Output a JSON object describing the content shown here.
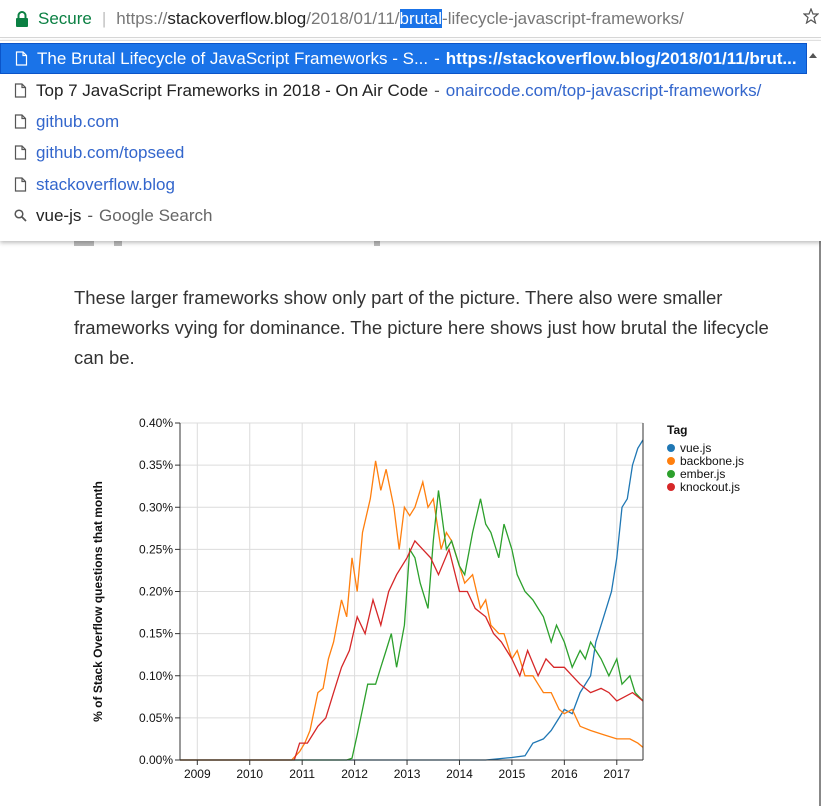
{
  "omnibox": {
    "secure_label": "Secure",
    "separator": "|",
    "url_scheme": "https://",
    "url_host": "stackoverflow.blog",
    "url_path_before": "/2018/01/11/",
    "url_selected": "brutal",
    "url_path_after": "-lifecycle-javascript-frameworks/"
  },
  "suggestions": [
    {
      "type": "page",
      "title": "The Brutal Lifecycle of JavaScript Frameworks - S...",
      "dash": "-",
      "url": "https://stackoverflow.blog/2018/01/11/brut...",
      "selected": true
    },
    {
      "type": "page",
      "title": "Top 7 JavaScript Frameworks in 2018 - On Air Code",
      "dash": "-",
      "url": "onaircode.com/top-javascript-frameworks/"
    },
    {
      "type": "page",
      "title": "",
      "dash": "",
      "url": "github.com"
    },
    {
      "type": "page",
      "title": "",
      "dash": "",
      "url": "github.com/topseed"
    },
    {
      "type": "page",
      "title": "",
      "dash": "",
      "url": "stackoverflow.blog"
    },
    {
      "type": "search",
      "title": "vue-js",
      "dash": "-",
      "url": "Google Search"
    }
  ],
  "article": {
    "paragraph": "These larger frameworks show only part of the picture. There also were smaller frameworks vying for dominance. The picture here shows just how brutal the lifecycle can be."
  },
  "chart_data": {
    "type": "line",
    "ylabel": "% of Stack Overflow questions that month",
    "xlabel": "",
    "x_ticks": [
      "2009",
      "2010",
      "2011",
      "2012",
      "2013",
      "2014",
      "2015",
      "2016",
      "2017"
    ],
    "y_ticks": [
      "0.00%",
      "0.05%",
      "0.10%",
      "0.15%",
      "0.20%",
      "0.25%",
      "0.30%",
      "0.35%",
      "0.40%"
    ],
    "ylim": [
      0,
      0.4
    ],
    "xlim": [
      2008.67,
      2017.5
    ],
    "grid": true,
    "legend_title": "Tag",
    "legend_position": "top-right",
    "series": [
      {
        "name": "vue.js",
        "color": "#1f77b4",
        "points": [
          [
            2008.67,
            0
          ],
          [
            2014.5,
            0
          ],
          [
            2015.0,
            0.003
          ],
          [
            2015.25,
            0.005
          ],
          [
            2015.4,
            0.02
          ],
          [
            2015.6,
            0.025
          ],
          [
            2015.75,
            0.035
          ],
          [
            2015.9,
            0.05
          ],
          [
            2016.0,
            0.06
          ],
          [
            2016.15,
            0.055
          ],
          [
            2016.3,
            0.08
          ],
          [
            2016.5,
            0.1
          ],
          [
            2016.6,
            0.14
          ],
          [
            2016.75,
            0.17
          ],
          [
            2016.9,
            0.2
          ],
          [
            2017.0,
            0.24
          ],
          [
            2017.1,
            0.3
          ],
          [
            2017.2,
            0.31
          ],
          [
            2017.3,
            0.35
          ],
          [
            2017.4,
            0.37
          ],
          [
            2017.5,
            0.38
          ]
        ]
      },
      {
        "name": "backbone.js",
        "color": "#ff7f0e",
        "points": [
          [
            2008.67,
            0
          ],
          [
            2010.8,
            0
          ],
          [
            2010.95,
            0.01
          ],
          [
            2011.05,
            0.02
          ],
          [
            2011.15,
            0.035
          ],
          [
            2011.3,
            0.08
          ],
          [
            2011.4,
            0.085
          ],
          [
            2011.5,
            0.12
          ],
          [
            2011.6,
            0.14
          ],
          [
            2011.75,
            0.19
          ],
          [
            2011.85,
            0.17
          ],
          [
            2011.95,
            0.24
          ],
          [
            2012.05,
            0.2
          ],
          [
            2012.15,
            0.27
          ],
          [
            2012.3,
            0.31
          ],
          [
            2012.4,
            0.355
          ],
          [
            2012.5,
            0.32
          ],
          [
            2012.6,
            0.345
          ],
          [
            2012.75,
            0.3
          ],
          [
            2012.85,
            0.25
          ],
          [
            2012.95,
            0.3
          ],
          [
            2013.05,
            0.29
          ],
          [
            2013.15,
            0.3
          ],
          [
            2013.3,
            0.33
          ],
          [
            2013.4,
            0.3
          ],
          [
            2013.5,
            0.31
          ],
          [
            2013.65,
            0.25
          ],
          [
            2013.75,
            0.27
          ],
          [
            2013.85,
            0.26
          ],
          [
            2014.0,
            0.23
          ],
          [
            2014.1,
            0.21
          ],
          [
            2014.25,
            0.22
          ],
          [
            2014.4,
            0.18
          ],
          [
            2014.5,
            0.19
          ],
          [
            2014.6,
            0.16
          ],
          [
            2014.75,
            0.15
          ],
          [
            2014.85,
            0.15
          ],
          [
            2015.0,
            0.12
          ],
          [
            2015.1,
            0.13
          ],
          [
            2015.25,
            0.1
          ],
          [
            2015.4,
            0.1
          ],
          [
            2015.5,
            0.09
          ],
          [
            2015.6,
            0.08
          ],
          [
            2015.75,
            0.08
          ],
          [
            2015.9,
            0.06
          ],
          [
            2016.0,
            0.055
          ],
          [
            2016.15,
            0.06
          ],
          [
            2016.3,
            0.04
          ],
          [
            2016.5,
            0.035
          ],
          [
            2016.75,
            0.03
          ],
          [
            2017.0,
            0.025
          ],
          [
            2017.25,
            0.025
          ],
          [
            2017.4,
            0.02
          ],
          [
            2017.5,
            0.015
          ]
        ]
      },
      {
        "name": "ember.js",
        "color": "#2ca02c",
        "points": [
          [
            2008.67,
            0
          ],
          [
            2011.85,
            0
          ],
          [
            2011.95,
            0.002
          ],
          [
            2012.05,
            0.03
          ],
          [
            2012.15,
            0.06
          ],
          [
            2012.25,
            0.09
          ],
          [
            2012.4,
            0.09
          ],
          [
            2012.5,
            0.11
          ],
          [
            2012.6,
            0.13
          ],
          [
            2012.7,
            0.15
          ],
          [
            2012.8,
            0.11
          ],
          [
            2012.95,
            0.16
          ],
          [
            2013.05,
            0.25
          ],
          [
            2013.15,
            0.24
          ],
          [
            2013.25,
            0.21
          ],
          [
            2013.4,
            0.18
          ],
          [
            2013.5,
            0.26
          ],
          [
            2013.6,
            0.32
          ],
          [
            2013.75,
            0.25
          ],
          [
            2013.85,
            0.26
          ],
          [
            2014.0,
            0.23
          ],
          [
            2014.1,
            0.22
          ],
          [
            2014.25,
            0.27
          ],
          [
            2014.4,
            0.31
          ],
          [
            2014.5,
            0.28
          ],
          [
            2014.6,
            0.27
          ],
          [
            2014.75,
            0.24
          ],
          [
            2014.85,
            0.28
          ],
          [
            2015.0,
            0.25
          ],
          [
            2015.1,
            0.22
          ],
          [
            2015.25,
            0.2
          ],
          [
            2015.4,
            0.19
          ],
          [
            2015.5,
            0.18
          ],
          [
            2015.6,
            0.17
          ],
          [
            2015.75,
            0.14
          ],
          [
            2015.85,
            0.16
          ],
          [
            2016.0,
            0.14
          ],
          [
            2016.15,
            0.11
          ],
          [
            2016.3,
            0.13
          ],
          [
            2016.4,
            0.12
          ],
          [
            2016.5,
            0.14
          ],
          [
            2016.6,
            0.13
          ],
          [
            2016.7,
            0.12
          ],
          [
            2016.85,
            0.1
          ],
          [
            2017.0,
            0.12
          ],
          [
            2017.1,
            0.09
          ],
          [
            2017.25,
            0.1
          ],
          [
            2017.35,
            0.08
          ],
          [
            2017.5,
            0.07
          ]
        ]
      },
      {
        "name": "knockout.js",
        "color": "#d62728",
        "points": [
          [
            2008.67,
            0
          ],
          [
            2010.85,
            0
          ],
          [
            2010.95,
            0.02
          ],
          [
            2011.1,
            0.02
          ],
          [
            2011.3,
            0.04
          ],
          [
            2011.45,
            0.05
          ],
          [
            2011.6,
            0.08
          ],
          [
            2011.75,
            0.11
          ],
          [
            2011.9,
            0.13
          ],
          [
            2012.05,
            0.17
          ],
          [
            2012.2,
            0.15
          ],
          [
            2012.35,
            0.19
          ],
          [
            2012.5,
            0.16
          ],
          [
            2012.65,
            0.2
          ],
          [
            2012.8,
            0.22
          ],
          [
            2013.0,
            0.24
          ],
          [
            2013.15,
            0.26
          ],
          [
            2013.3,
            0.25
          ],
          [
            2013.45,
            0.24
          ],
          [
            2013.6,
            0.22
          ],
          [
            2013.8,
            0.25
          ],
          [
            2014.0,
            0.2
          ],
          [
            2014.15,
            0.2
          ],
          [
            2014.3,
            0.18
          ],
          [
            2014.5,
            0.17
          ],
          [
            2014.65,
            0.15
          ],
          [
            2014.8,
            0.14
          ],
          [
            2015.0,
            0.12
          ],
          [
            2015.15,
            0.1
          ],
          [
            2015.3,
            0.13
          ],
          [
            2015.5,
            0.1
          ],
          [
            2015.65,
            0.12
          ],
          [
            2015.8,
            0.11
          ],
          [
            2016.0,
            0.11
          ],
          [
            2016.15,
            0.1
          ],
          [
            2016.3,
            0.09
          ],
          [
            2016.5,
            0.08
          ],
          [
            2016.7,
            0.085
          ],
          [
            2016.85,
            0.08
          ],
          [
            2017.0,
            0.07
          ],
          [
            2017.15,
            0.075
          ],
          [
            2017.3,
            0.08
          ],
          [
            2017.5,
            0.07
          ]
        ]
      }
    ]
  },
  "colors": {
    "secure_green": "#0b8043",
    "selection_blue": "#1a73e8",
    "link_blue": "#3366cc"
  }
}
